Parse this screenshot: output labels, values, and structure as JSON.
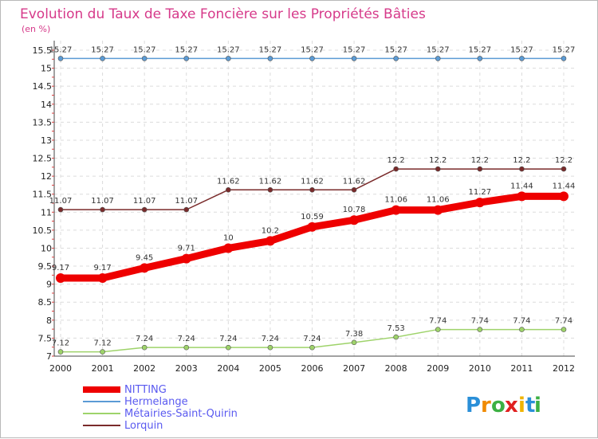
{
  "chart_data": {
    "type": "line",
    "title": "Evolution du Taux de Taxe Foncière sur les Propriétés Bâties",
    "subtitle": "(en %)",
    "xlabel": "",
    "ylabel": "",
    "x": [
      "2000",
      "2001",
      "2002",
      "2003",
      "2004",
      "2005",
      "2006",
      "2007",
      "2008",
      "2009",
      "2010",
      "2011",
      "2012"
    ],
    "ylim": [
      7,
      15.5
    ],
    "yticks": [
      "7",
      "7.5",
      "8",
      "8.5",
      "9",
      "9.5",
      "10",
      "10.5",
      "11",
      "11.5",
      "12",
      "12.5",
      "13",
      "13.5",
      "14",
      "14.5",
      "15",
      "15.5"
    ],
    "grid": true,
    "legend_position": "bottom-left",
    "series": [
      {
        "name": "NITTING",
        "color": "#ee0000",
        "values": [
          9.17,
          9.17,
          9.45,
          9.71,
          10,
          10.2,
          10.59,
          10.78,
          11.06,
          11.06,
          11.27,
          11.44,
          11.44
        ],
        "labels": [
          "9.17",
          "9.17",
          "9.45",
          "9.71",
          "10",
          "10.2",
          "10.59",
          "10.78",
          "11.06",
          "11.06",
          "11.27",
          "11.44",
          "11.44"
        ]
      },
      {
        "name": "Hermelange",
        "color": "#5b9bd5",
        "values": [
          15.27,
          15.27,
          15.27,
          15.27,
          15.27,
          15.27,
          15.27,
          15.27,
          15.27,
          15.27,
          15.27,
          15.27,
          15.27
        ],
        "labels": [
          "15.27",
          "15.27",
          "15.27",
          "15.27",
          "15.27",
          "15.27",
          "15.27",
          "15.27",
          "15.27",
          "15.27",
          "15.27",
          "15.27",
          "15.27"
        ]
      },
      {
        "name": "Métairies-Saint-Quirin",
        "color": "#9ed36a",
        "values": [
          7.12,
          7.12,
          7.24,
          7.24,
          7.24,
          7.24,
          7.24,
          7.38,
          7.53,
          7.74,
          7.74,
          7.74,
          7.74
        ],
        "labels": [
          "7.12",
          "7.12",
          "7.24",
          "7.24",
          "7.24",
          "7.24",
          "7.24",
          "7.38",
          "7.53",
          "7.74",
          "7.74",
          "7.74",
          "7.74"
        ]
      },
      {
        "name": "Lorquin",
        "color": "#7a2b2b",
        "values": [
          11.07,
          11.07,
          11.07,
          11.07,
          11.62,
          11.62,
          11.62,
          11.62,
          12.2,
          12.2,
          12.2,
          12.2,
          12.2
        ],
        "labels": [
          "11.07",
          "11.07",
          "11.07",
          "11.07",
          "11.62",
          "11.62",
          "11.62",
          "11.62",
          "12.2",
          "12.2",
          "12.2",
          "12.2",
          "12.2"
        ]
      }
    ]
  },
  "logo": {
    "text": "Proxiti",
    "letters": [
      "P",
      "r",
      "o",
      "x",
      "i",
      "t",
      "i"
    ],
    "colors": [
      "#2a8fd8",
      "#f08a00",
      "#3cb043",
      "#e02020",
      "#f0b400",
      "#2a8fd8",
      "#3cb043"
    ]
  }
}
